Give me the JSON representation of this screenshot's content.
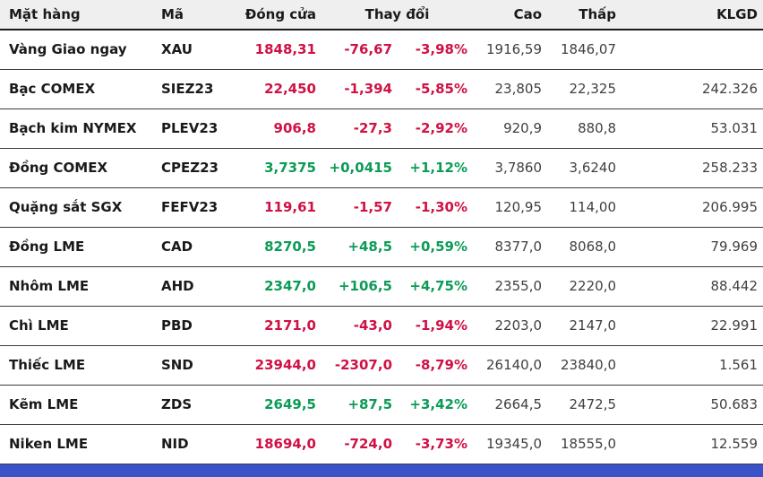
{
  "table": {
    "headers": {
      "name": "Mặt hàng",
      "code": "Mã",
      "close": "Đóng cửa",
      "change": "Thay đổi",
      "high": "Cao",
      "low": "Thấp",
      "volume": "KLGD"
    },
    "rows": [
      {
        "name": "Vàng Giao ngay",
        "code": "XAU",
        "close": "1848,31",
        "change": "-76,67",
        "change_pct": "-3,98%",
        "high": "1916,59",
        "low": "1846,07",
        "volume": "",
        "direction": "down"
      },
      {
        "name": "Bạc COMEX",
        "code": "SIEZ23",
        "close": "22,450",
        "change": "-1,394",
        "change_pct": "-5,85%",
        "high": "23,805",
        "low": "22,325",
        "volume": "242.326",
        "direction": "down"
      },
      {
        "name": "Bạch kim NYMEX",
        "code": "PLEV23",
        "close": "906,8",
        "change": "-27,3",
        "change_pct": "-2,92%",
        "high": "920,9",
        "low": "880,8",
        "volume": "53.031",
        "direction": "down"
      },
      {
        "name": "Đồng COMEX",
        "code": "CPEZ23",
        "close": "3,7375",
        "change": "+0,0415",
        "change_pct": "+1,12%",
        "high": "3,7860",
        "low": "3,6240",
        "volume": "258.233",
        "direction": "up"
      },
      {
        "name": "Quặng sắt SGX",
        "code": "FEFV23",
        "close": "119,61",
        "change": "-1,57",
        "change_pct": "-1,30%",
        "high": "120,95",
        "low": "114,00",
        "volume": "206.995",
        "direction": "down"
      },
      {
        "name": "Đồng LME",
        "code": "CAD",
        "close": "8270,5",
        "change": "+48,5",
        "change_pct": "+0,59%",
        "high": "8377,0",
        "low": "8068,0",
        "volume": "79.969",
        "direction": "up"
      },
      {
        "name": "Nhôm LME",
        "code": "AHD",
        "close": "2347,0",
        "change": "+106,5",
        "change_pct": "+4,75%",
        "high": "2355,0",
        "low": "2220,0",
        "volume": "88.442",
        "direction": "up"
      },
      {
        "name": "Chì LME",
        "code": "PBD",
        "close": "2171,0",
        "change": "-43,0",
        "change_pct": "-1,94%",
        "high": "2203,0",
        "low": "2147,0",
        "volume": "22.991",
        "direction": "down"
      },
      {
        "name": "Thiếc LME",
        "code": "SND",
        "close": "23944,0",
        "change": "-2307,0",
        "change_pct": "-8,79%",
        "high": "26140,0",
        "low": "23840,0",
        "volume": "1.561",
        "direction": "down"
      },
      {
        "name": "Kẽm LME",
        "code": "ZDS",
        "close": "2649,5",
        "change": "+87,5",
        "change_pct": "+3,42%",
        "high": "2664,5",
        "low": "2472,5",
        "volume": "50.683",
        "direction": "up"
      },
      {
        "name": "Niken LME",
        "code": "NID",
        "close": "18694,0",
        "change": "-724,0",
        "change_pct": "-3,73%",
        "high": "19345,0",
        "low": "18555,0",
        "volume": "12.559",
        "direction": "down"
      }
    ]
  },
  "colors": {
    "up": "#0c9b57",
    "down": "#d01144",
    "header_bg": "#efefef",
    "border": "#3b3b3b",
    "footer_bar": "#3b52c9",
    "text": "#1a1a1a",
    "muted_number": "#3f3f3f"
  },
  "chart_data": {
    "type": "table",
    "columns": [
      "Mặt hàng",
      "Mã",
      "Đóng cửa",
      "Thay đổi",
      "Thay đổi %",
      "Cao",
      "Thấp",
      "KLGD"
    ],
    "rows": [
      [
        "Vàng Giao ngay",
        "XAU",
        "1848,31",
        "-76,67",
        "-3,98%",
        "1916,59",
        "1846,07",
        ""
      ],
      [
        "Bạc COMEX",
        "SIEZ23",
        "22,450",
        "-1,394",
        "-5,85%",
        "23,805",
        "22,325",
        "242.326"
      ],
      [
        "Bạch kim NYMEX",
        "PLEV23",
        "906,8",
        "-27,3",
        "-2,92%",
        "920,9",
        "880,8",
        "53.031"
      ],
      [
        "Đồng COMEX",
        "CPEZ23",
        "3,7375",
        "+0,0415",
        "+1,12%",
        "3,7860",
        "3,6240",
        "258.233"
      ],
      [
        "Quặng sắt SGX",
        "FEFV23",
        "119,61",
        "-1,57",
        "-1,30%",
        "120,95",
        "114,00",
        "206.995"
      ],
      [
        "Đồng LME",
        "CAD",
        "8270,5",
        "+48,5",
        "+0,59%",
        "8377,0",
        "8068,0",
        "79.969"
      ],
      [
        "Nhôm LME",
        "AHD",
        "2347,0",
        "+106,5",
        "+4,75%",
        "2355,0",
        "2220,0",
        "88.442"
      ],
      [
        "Chì LME",
        "PBD",
        "2171,0",
        "-43,0",
        "-1,94%",
        "2203,0",
        "2147,0",
        "22.991"
      ],
      [
        "Thiếc LME",
        "SND",
        "23944,0",
        "-2307,0",
        "-8,79%",
        "26140,0",
        "23840,0",
        "1.561"
      ],
      [
        "Kẽm LME",
        "ZDS",
        "2649,5",
        "+87,5",
        "+3,42%",
        "2664,5",
        "2472,5",
        "50.683"
      ],
      [
        "Niken LME",
        "NID",
        "18694,0",
        "-724,0",
        "-3,73%",
        "19345,0",
        "18555,0",
        "12.559"
      ]
    ]
  }
}
